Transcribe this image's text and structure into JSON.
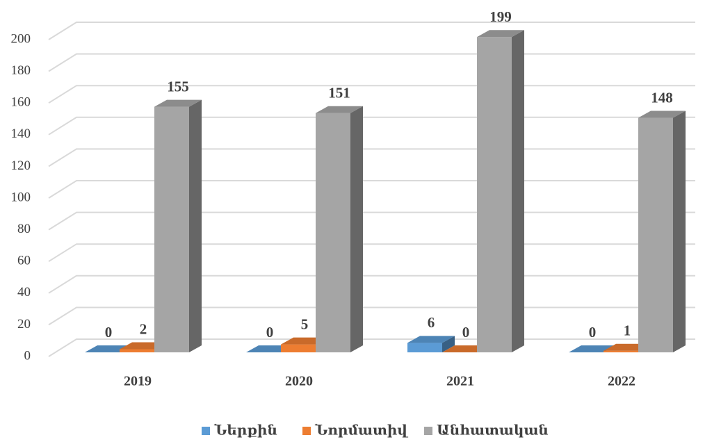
{
  "chart_data": {
    "type": "bar3d",
    "categories": [
      "2019",
      "2020",
      "2021",
      "2022"
    ],
    "series": [
      {
        "name": "Ներքին",
        "color": "#5b9bd5",
        "values": [
          0,
          0,
          6,
          0
        ]
      },
      {
        "name": "Նորմատիվ",
        "color": "#ed7d31",
        "values": [
          2,
          5,
          0,
          1
        ]
      },
      {
        "name": "Անհատական",
        "color": "#a5a5a5",
        "values": [
          155,
          151,
          199,
          148
        ]
      }
    ],
    "ylim": [
      0,
      200
    ],
    "yticks": [
      0,
      20,
      40,
      60,
      80,
      100,
      120,
      140,
      160,
      180,
      200
    ],
    "grid": true,
    "legend": "bottom"
  }
}
